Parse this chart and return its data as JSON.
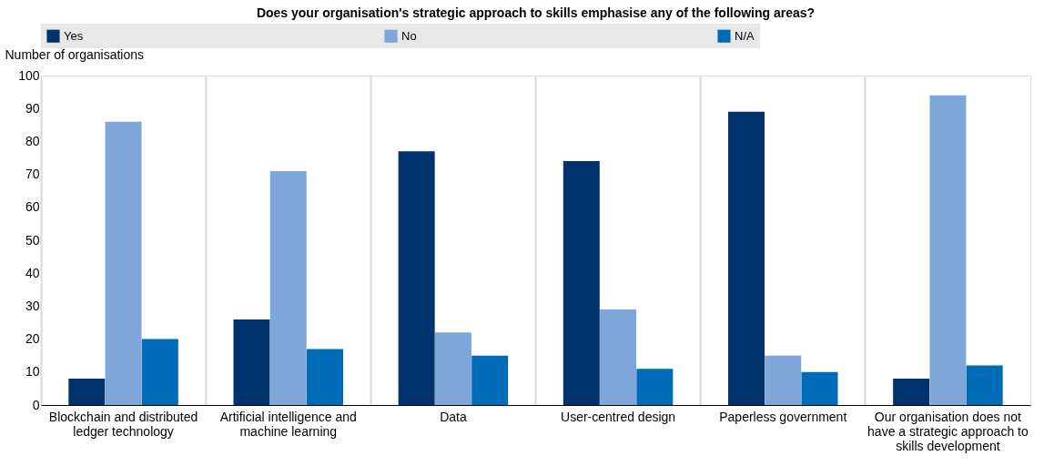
{
  "chart_data": {
    "type": "bar",
    "title": "Does your organisation's strategic approach to skills emphasise any of the following areas?",
    "ylabel": "Number of organisations",
    "categories": [
      "Blockchain and distributed ledger technology",
      "Artificial intelligence and machine learning",
      "Data",
      "User-centred design",
      "Paperless government",
      "Our organisation does not have a strategic approach to skills development"
    ],
    "series": [
      {
        "name": "Yes",
        "color": "#00326e",
        "values": [
          8,
          26,
          77,
          74,
          89,
          8
        ]
      },
      {
        "name": "No",
        "color": "#7ea6d9",
        "values": [
          86,
          71,
          22,
          29,
          15,
          94
        ]
      },
      {
        "name": "N/A",
        "color": "#006bb6",
        "values": [
          20,
          17,
          15,
          11,
          10,
          12
        ]
      }
    ],
    "ylim": [
      0,
      100
    ],
    "yticks": [
      0,
      10,
      20,
      30,
      40,
      50,
      60,
      70,
      80,
      90,
      100
    ],
    "grid": "x",
    "legend": "top"
  }
}
